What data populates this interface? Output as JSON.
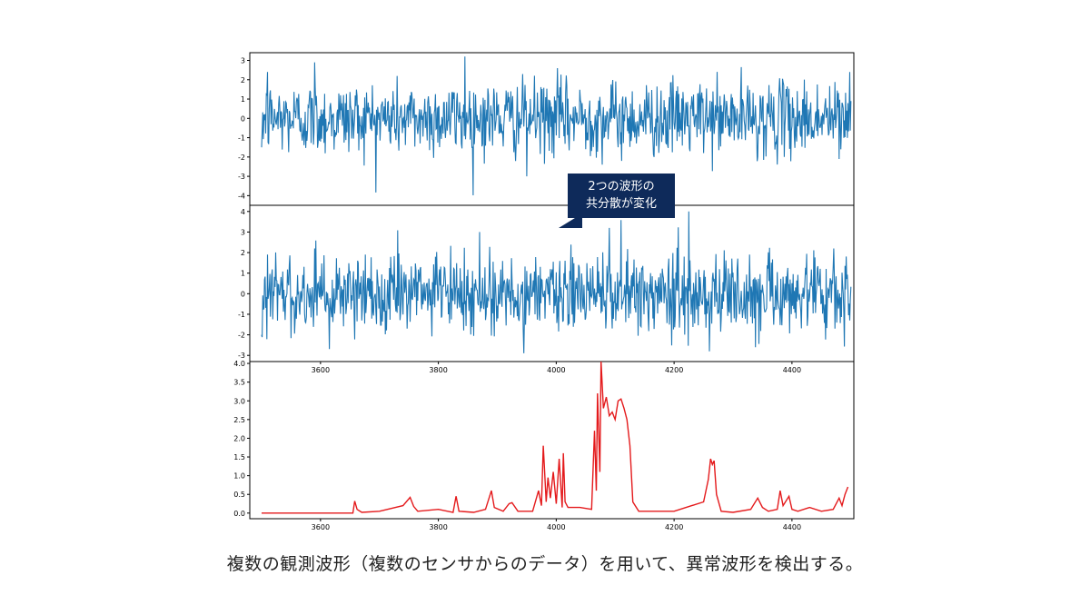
{
  "caption": "複数の観測波形（複数のセンサからのデータ）を用いて、異常波形を検出する。",
  "callout": {
    "line1": "2つの波形の",
    "line2": "共分散が変化"
  },
  "colors": {
    "waveform": "#1f77b4",
    "anomaly": "#e41a1c",
    "callout_bg": "#0e2a5a"
  },
  "chart_data": [
    {
      "type": "line",
      "name": "waveform-1",
      "xlim": [
        3480,
        4505
      ],
      "ylim": [
        -4.5,
        3.4
      ],
      "yticks": [
        -4,
        -3,
        -2,
        -1,
        0,
        1,
        2,
        3
      ],
      "xticks": [],
      "x_range": [
        3500,
        4500
      ],
      "summary": "Noisy signal centered at 0, amplitude mostly within ±2, peaks near 3.2 at x≈3845 and troughs near -3 at x≈3950",
      "series": [
        {
          "values_generated": true
        }
      ]
    },
    {
      "type": "line",
      "name": "waveform-2",
      "xlim": [
        3480,
        4505
      ],
      "ylim": [
        -3.3,
        4.3
      ],
      "yticks": [
        -3,
        -2,
        -1,
        0,
        1,
        2,
        3,
        4
      ],
      "xticks": [
        3600,
        3800,
        4000,
        4200,
        4400
      ],
      "x_range": [
        3500,
        4500
      ],
      "summary": "Noisy signal centered at 0, amplitude mostly within ±2, peak near 4 at x≈4225 and troughs near -2.9 at x≈3945",
      "series": [
        {
          "values_generated": true
        }
      ]
    },
    {
      "type": "line",
      "name": "anomaly-score",
      "xlim": [
        3480,
        4505
      ],
      "ylim": [
        -0.15,
        4.05
      ],
      "yticks": [
        0.0,
        0.5,
        1.0,
        1.5,
        2.0,
        2.5,
        3.0,
        3.5,
        4.0
      ],
      "ytick_labels": [
        "0.0",
        "0.5",
        "1.0",
        "1.5",
        "2.0",
        "2.5",
        "3.0",
        "3.5",
        "4.0"
      ],
      "xticks": [
        3600,
        3800,
        4000,
        4200,
        4400
      ],
      "x": [
        3500,
        3655,
        3658,
        3662,
        3670,
        3700,
        3740,
        3752,
        3758,
        3765,
        3800,
        3825,
        3830,
        3835,
        3860,
        3880,
        3890,
        3895,
        3910,
        3920,
        3925,
        3935,
        3960,
        3970,
        3975,
        3978,
        3983,
        3986,
        3990,
        3995,
        4000,
        4005,
        4010,
        4012,
        4015,
        4020,
        4040,
        4060,
        4065,
        4068,
        4070,
        4074,
        4076,
        4080,
        4085,
        4090,
        4095,
        4100,
        4105,
        4110,
        4115,
        4120,
        4125,
        4130,
        4140,
        4200,
        4230,
        4250,
        4258,
        4262,
        4265,
        4268,
        4272,
        4280,
        4300,
        4330,
        4342,
        4350,
        4360,
        4375,
        4380,
        4385,
        4395,
        4400,
        4410,
        4430,
        4450,
        4470,
        4480,
        4485,
        4490,
        4495
      ],
      "y": [
        0.0,
        0.0,
        0.32,
        0.1,
        0.02,
        0.05,
        0.2,
        0.42,
        0.18,
        0.05,
        0.1,
        0.02,
        0.45,
        0.05,
        0.02,
        0.1,
        0.6,
        0.15,
        0.05,
        0.25,
        0.28,
        0.05,
        0.05,
        0.6,
        0.2,
        1.8,
        0.3,
        0.95,
        0.4,
        1.1,
        0.25,
        1.45,
        0.15,
        1.6,
        0.3,
        0.15,
        0.15,
        0.1,
        2.2,
        0.6,
        3.2,
        1.1,
        4.05,
        2.8,
        3.1,
        2.6,
        2.7,
        2.5,
        3.0,
        3.05,
        2.8,
        2.5,
        1.8,
        0.3,
        0.05,
        0.05,
        0.2,
        0.3,
        0.9,
        1.45,
        1.3,
        1.4,
        0.5,
        0.05,
        0.02,
        0.1,
        0.4,
        0.15,
        0.05,
        0.1,
        0.6,
        0.2,
        0.45,
        0.1,
        0.05,
        0.15,
        0.05,
        0.1,
        0.4,
        0.2,
        0.5,
        0.7
      ]
    }
  ]
}
